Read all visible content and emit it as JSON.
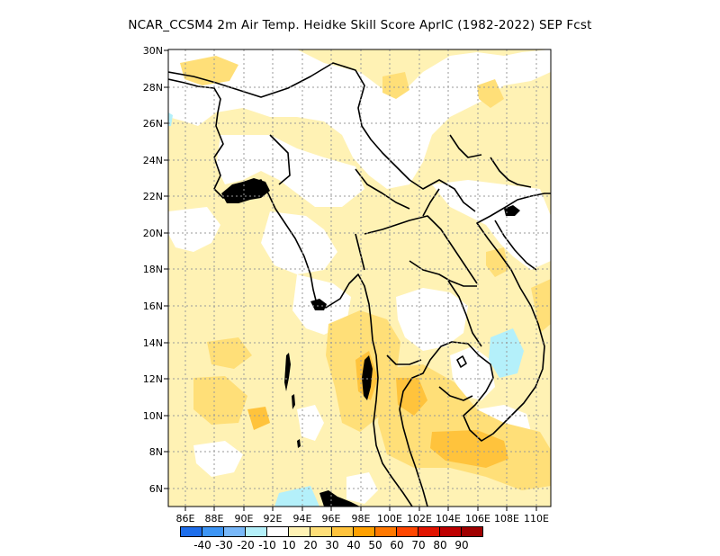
{
  "title": "NCAR_CCSM4  2m Air Temp. Heidke Skill Score AprIC (1982-2022) SEP Fcst",
  "lat_labels": [
    "30N",
    "28N",
    "26N",
    "24N",
    "22N",
    "20N",
    "18N",
    "16N",
    "14N",
    "12N",
    "10N",
    "8N",
    "6N"
  ],
  "lon_labels": [
    "86E",
    "88E",
    "90E",
    "92E",
    "94E",
    "96E",
    "98E",
    "100E",
    "102E",
    "104E",
    "106E",
    "108E",
    "110E"
  ],
  "colorbar": {
    "colors": [
      "#1e6eeb",
      "#3d95f5",
      "#78b8f9",
      "#b4f0fa",
      "#ffffff",
      "#fff2b4",
      "#ffdf78",
      "#ffc33c",
      "#ffa000",
      "#ff7800",
      "#ff4600",
      "#e11400",
      "#be0000",
      "#a00000"
    ],
    "labels": [
      "-40",
      "-30",
      "-20",
      "-10",
      "10",
      "20",
      "30",
      "40",
      "50",
      "60",
      "70",
      "80",
      "90"
    ]
  },
  "colors": {
    "land_outline": "#000000",
    "grid": "#9a9a9a",
    "skill_10_20": "#fff2b4",
    "skill_20_30": "#ffdf78",
    "skill_30_40": "#ffc33c",
    "skill_neg10": "#b4f0fa"
  }
}
